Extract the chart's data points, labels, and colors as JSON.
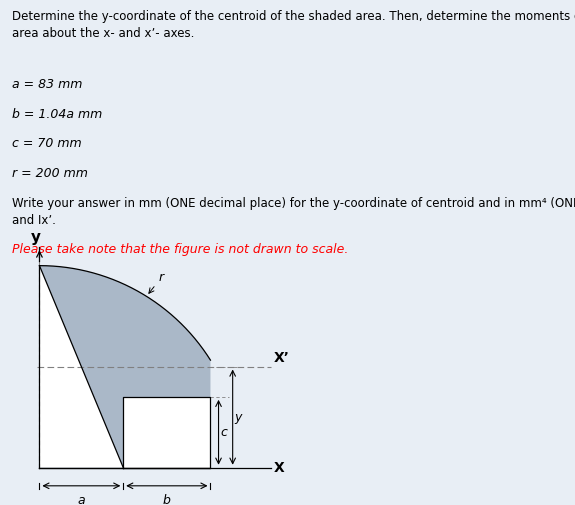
{
  "title_text": "Determine the y-coordinate of the centroid of the shaded area. Then, determine the moments of inertia of the shaded\narea about the x- and xʼ- axes.",
  "param_a": "a = 83 mm",
  "param_b": "b = 1.04a mm",
  "param_c": "c = 70 mm",
  "param_r": "r = 200 mm",
  "instruction": "Write your answer in mm (ONE decimal place) for the y-coordinate of centroid and in mm⁴ (ONE decimal place) for Ix\nand Ixʼ.",
  "note": "Please take note that the figure is not drawn to scale.",
  "bg_color": "#e8eef5",
  "fig_bg_color": "#ffffff",
  "shade_color": "#aab8c8",
  "a_val": 83,
  "b_val": 86.32,
  "c_val": 70,
  "r_val": 200
}
